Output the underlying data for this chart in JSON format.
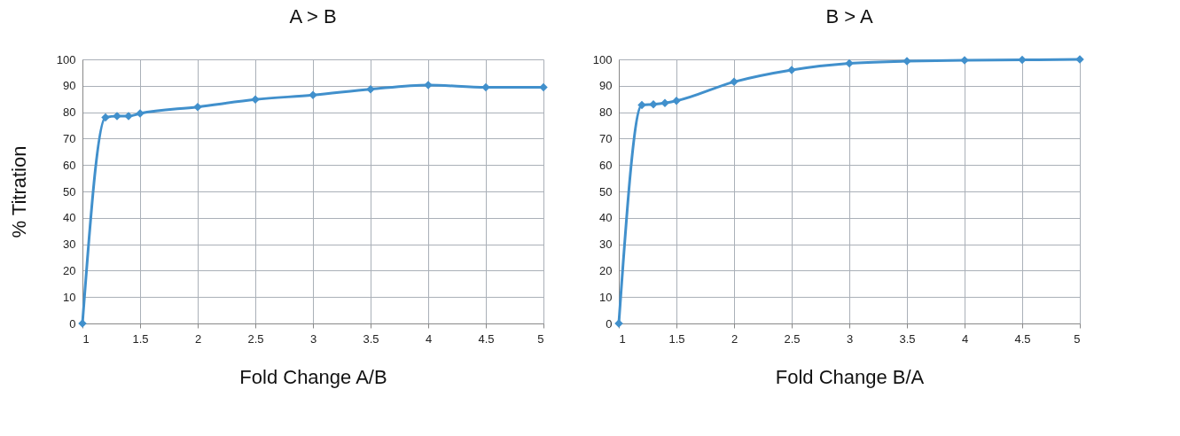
{
  "chart_data": [
    {
      "type": "line",
      "title": "A > B",
      "xlabel": "Fold Change  A/B",
      "ylabel": "% Titration",
      "x": [
        1,
        1.2,
        1.3,
        1.4,
        1.5,
        2,
        2.5,
        3,
        3.5,
        4,
        4.5,
        5
      ],
      "series": [
        {
          "color": "#4190cc",
          "values": [
            0,
            78,
            78.5,
            78.5,
            79.5,
            82,
            84.8,
            86.5,
            88.7,
            90.3,
            89.4,
            89.4
          ]
        }
      ],
      "xlim": [
        1,
        5
      ],
      "xticks": [
        1,
        1.5,
        2,
        2.5,
        3,
        3.5,
        4,
        4.5,
        5
      ],
      "ylim": [
        0,
        100
      ],
      "yticks": [
        0,
        10,
        20,
        30,
        40,
        50,
        60,
        70,
        80,
        90,
        100
      ],
      "grid": true,
      "marker": "diamond",
      "line_style": "solid"
    },
    {
      "type": "line",
      "title": "B > A",
      "xlabel": "Fold Change  B/A",
      "x": [
        1,
        1.2,
        1.3,
        1.4,
        1.5,
        2,
        2.5,
        3,
        3.5,
        4,
        4.5,
        5
      ],
      "series": [
        {
          "color": "#4190cc",
          "values": [
            0,
            82.7,
            83,
            83.5,
            84.3,
            91.5,
            96,
            98.5,
            99.3,
            99.7,
            99.8,
            100
          ]
        }
      ],
      "xlim": [
        1,
        5
      ],
      "xticks": [
        1,
        1.5,
        2,
        2.5,
        3,
        3.5,
        4,
        4.5,
        5
      ],
      "ylim": [
        0,
        100
      ],
      "yticks": [
        0,
        10,
        20,
        30,
        40,
        50,
        60,
        70,
        80,
        90,
        100
      ],
      "grid": true,
      "marker": "diamond",
      "line_style": "solid"
    }
  ]
}
